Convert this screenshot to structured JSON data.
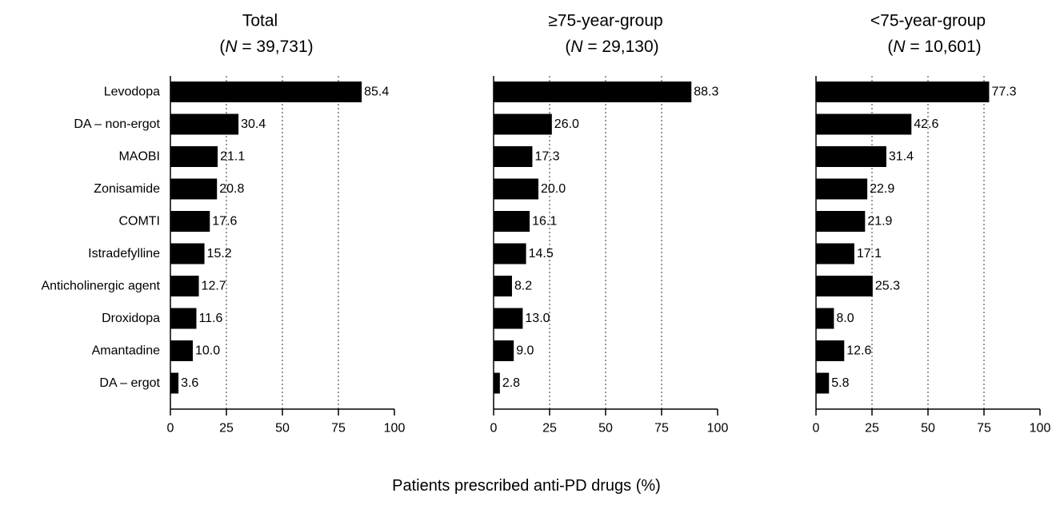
{
  "chart_data": {
    "type": "bar",
    "orientation": "horizontal",
    "xlabel": "Patients prescribed anti-PD drugs (%)",
    "xlim": [
      0,
      100
    ],
    "xticks": [
      0,
      25,
      50,
      75,
      100
    ],
    "gridlines": "dotted vertical at 25, 50, 75",
    "bar_color": "#000000",
    "categories": [
      "Levodopa",
      "DA – non-ergot",
      "MAOBI",
      "Zonisamide",
      "COMTI",
      "Istradefylline",
      "Anticholinergic agent",
      "Droxidopa",
      "Amantadine",
      "DA – ergot"
    ],
    "panels": [
      {
        "title": "Total",
        "n_label": "N",
        "n_value": " = 39,731)",
        "values": [
          85.4,
          30.4,
          21.1,
          20.8,
          17.6,
          15.2,
          12.7,
          11.6,
          10.0,
          3.6
        ],
        "value_labels": [
          "85.4",
          "30.4",
          "21.1",
          "20.8",
          "17.6",
          "15.2",
          "12.7",
          "11.6",
          "10.0",
          "3.6"
        ]
      },
      {
        "title": "≥75-year-group",
        "n_label": "N",
        "n_value": " = 29,130)",
        "values": [
          88.3,
          26.0,
          17.3,
          20.0,
          16.1,
          14.5,
          8.2,
          13.0,
          9.0,
          2.8
        ],
        "value_labels": [
          "88.3",
          "26.0",
          "17.3",
          "20.0",
          "16.1",
          "14.5",
          "8.2",
          "13.0",
          "9.0",
          "2.8"
        ]
      },
      {
        "title": "<75-year-group",
        "n_label": "N",
        "n_value": " = 10,601)",
        "values": [
          77.3,
          42.6,
          31.4,
          22.9,
          21.9,
          17.1,
          25.3,
          8.0,
          12.6,
          5.8
        ],
        "value_labels": [
          "77.3",
          "42.6",
          "31.4",
          "22.9",
          "21.9",
          "17.1",
          "25.3",
          "8.0",
          "12.6",
          "5.8"
        ]
      }
    ]
  }
}
